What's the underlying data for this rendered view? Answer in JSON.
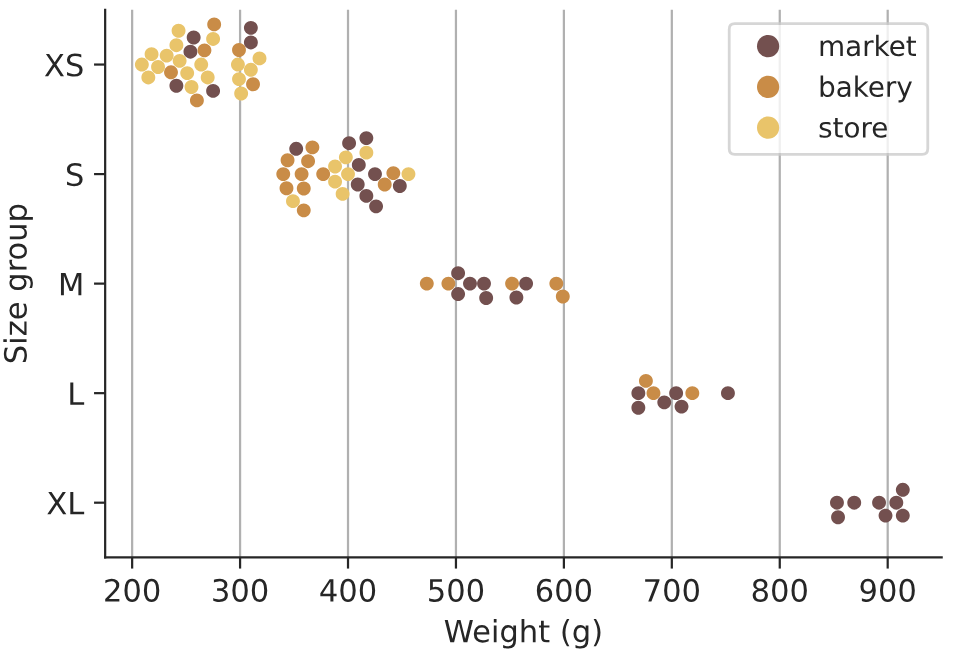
{
  "chart_data": {
    "type": "scatter",
    "orientation": "horizontal",
    "xlabel": "Weight (g)",
    "ylabel": "Size group",
    "categories": [
      "XS",
      "S",
      "M",
      "L",
      "XL"
    ],
    "series": [
      {
        "name": "market",
        "color": "#73504f",
        "x": [
          "XS",
          "XS",
          "XS",
          "XS",
          "XS",
          "XS",
          "S",
          "S",
          "S",
          "S",
          "S",
          "S",
          "S",
          "S",
          "S",
          "M",
          "M",
          "M",
          "M",
          "M",
          "M",
          "M",
          "L",
          "L",
          "L",
          "L",
          "L",
          "L",
          "XL",
          "XL",
          "XL",
          "XL",
          "XL",
          "XL",
          "XL",
          "XL"
        ],
        "values": [
          241,
          254,
          257,
          275,
          310,
          310,
          352,
          401,
          409,
          410,
          417,
          425,
          426,
          448,
          417,
          502,
          502,
          513,
          526,
          528,
          556,
          565,
          669,
          669,
          693,
          704,
          709,
          752,
          854,
          853,
          869,
          892,
          898,
          908,
          914,
          914
        ]
      },
      {
        "name": "bakery",
        "color": "#c98c47",
        "x": [
          "XS",
          "XS",
          "XS",
          "XS",
          "XS",
          "XS",
          "S",
          "S",
          "S",
          "S",
          "S",
          "S",
          "S",
          "S",
          "S",
          "S",
          "S",
          "M",
          "M",
          "M",
          "M",
          "M",
          "L",
          "L",
          "L"
        ],
        "values": [
          236,
          260,
          267,
          276,
          299,
          312,
          340,
          343,
          344,
          357,
          359,
          359,
          363,
          367,
          377,
          434,
          442,
          473,
          493,
          552,
          593,
          599,
          676,
          683,
          719
        ]
      },
      {
        "name": "store",
        "color": "#e9c46a",
        "x": [
          "XS",
          "XS",
          "XS",
          "XS",
          "XS",
          "XS",
          "XS",
          "XS",
          "XS",
          "XS",
          "XS",
          "XS",
          "XS",
          "XS",
          "XS",
          "XS",
          "XS",
          "XS",
          "S",
          "S",
          "S",
          "S",
          "S",
          "S",
          "S",
          "S"
        ],
        "values": [
          209,
          215,
          218,
          224,
          232,
          243,
          241,
          244,
          251,
          255,
          264,
          270,
          275,
          299,
          298,
          301,
          310,
          318,
          349,
          388,
          388,
          400,
          398,
          417,
          456,
          395
        ]
      }
    ],
    "xlim": [
      175,
      950
    ],
    "xticks": [
      200,
      300,
      400,
      500,
      600,
      700,
      800,
      900
    ],
    "grid": "x",
    "legend": "top right",
    "marker": "circle"
  }
}
